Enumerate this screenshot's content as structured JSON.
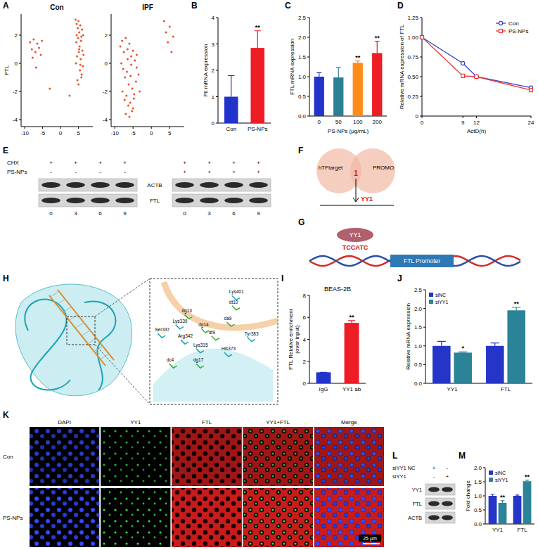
{
  "chart_data": [
    {
      "type": "scatter",
      "panel_label": "A",
      "title": "Con",
      "y_label": "FTL",
      "color": "#e8502a",
      "marker": "circle",
      "x": [
        4.2,
        4.5,
        4.8,
        5.0,
        5.2,
        5.5,
        5.8,
        6.0,
        6.3,
        4.4,
        4.9,
        5.3,
        5.7,
        6.1,
        4.6,
        5.1,
        5.6,
        6.2,
        4.3,
        5.4,
        5.9,
        4.7,
        5.0,
        5.8,
        6.4,
        4.5,
        5.2,
        5.5,
        -8.5,
        -8.0,
        -7.5,
        -7.0,
        -6.5,
        -6.0,
        -5.5,
        -5.2,
        -7.8,
        -6.8,
        -3.0,
        2.5
      ],
      "values": [
        3.1,
        2.8,
        2.5,
        3.0,
        2.2,
        2.7,
        1.9,
        2.4,
        2.0,
        1.5,
        1.8,
        1.2,
        1.6,
        0.9,
        0.5,
        0.8,
        0.3,
        -0.2,
        0.0,
        -0.5,
        -0.8,
        -1.2,
        -1.5,
        -1.0,
        0.6,
        2.0,
        1.0,
        -0.1,
        1.5,
        1.0,
        1.7,
        0.8,
        1.4,
        1.1,
        0.6,
        1.6,
        0.4,
        -0.3,
        -1.8,
        -2.3
      ],
      "xlim": [
        -11,
        9
      ],
      "xticks": [
        -10,
        -5,
        0,
        5
      ],
      "ylim": [
        -4.5,
        3.5
      ],
      "yticks": [
        -4,
        -2,
        0,
        2
      ]
    },
    {
      "type": "scatter",
      "title": "IPF",
      "color": "#e8502a",
      "marker": "circle",
      "x": [
        -8.5,
        -8.0,
        -7.5,
        -7.0,
        -6.5,
        -6.0,
        -5.5,
        -5.0,
        -4.5,
        -4.0,
        -3.5,
        -8.2,
        -7.7,
        -7.2,
        -6.7,
        -6.2,
        -5.7,
        -5.2,
        -4.7,
        -4.2,
        -7.9,
        -7.3,
        -6.8,
        -6.3,
        -5.8,
        -5.3,
        -4.8,
        -7.0,
        -6.0,
        -5.0,
        -6.5,
        -5.5,
        -4.0,
        -3.2,
        3.5,
        4.0,
        4.5,
        5.0,
        5.5,
        6.0
      ],
      "values": [
        1.2,
        1.6,
        0.8,
        1.8,
        1.0,
        1.4,
        0.5,
        0.9,
        0.2,
        -0.3,
        -0.8,
        0.0,
        -0.4,
        -1.0,
        -0.6,
        -1.5,
        -0.9,
        -1.8,
        -2.2,
        -1.3,
        -2.0,
        -2.6,
        -2.3,
        -3.0,
        -2.8,
        -3.4,
        -2.5,
        -3.6,
        -3.8,
        -3.2,
        0.3,
        -0.1,
        0.6,
        -2.0,
        3.0,
        2.2,
        1.5,
        2.6,
        0.8,
        1.9
      ],
      "xlim": [
        -11,
        9
      ],
      "xticks": [
        -10,
        -5,
        0,
        5
      ],
      "ylim": [
        -4.5,
        3.5
      ],
      "yticks": [
        -4,
        -2,
        0,
        2
      ]
    },
    {
      "type": "bar",
      "panel_label": "B",
      "y_label": "Ftl mRNA expression",
      "categories": [
        "Con",
        "PS-NPs"
      ],
      "values": [
        1.0,
        2.85
      ],
      "errors": [
        0.8,
        0.65
      ],
      "significance": [
        null,
        "**"
      ],
      "colors": [
        "#2233cc",
        "#ee1c25"
      ],
      "ylim": [
        0,
        4
      ],
      "yticks": [
        0,
        1,
        2,
        3,
        4
      ]
    },
    {
      "type": "bar",
      "panel_label": "C",
      "y_label": "FTL mRNA expression",
      "x_label": "PS-NPs (μg/mL)",
      "categories": [
        "0",
        "50",
        "100",
        "200"
      ],
      "values": [
        1.0,
        0.98,
        1.35,
        1.6
      ],
      "errors": [
        0.1,
        0.25,
        0.05,
        0.3
      ],
      "significance": [
        null,
        null,
        "**",
        "**"
      ],
      "colors": [
        "#2233cc",
        "#2a7f95",
        "#ff8c1a",
        "#ee1c25"
      ],
      "ylim": [
        0,
        2.5
      ],
      "yticks": [
        {
          "value": 0,
          "label": "0.0"
        },
        0.5,
        {
          "value": 1,
          "label": "1.0"
        },
        1.5,
        {
          "value": 2,
          "label": "2.0"
        },
        2.5
      ]
    },
    {
      "type": "line",
      "panel_label": "D",
      "y_label": "Relative mRNA expression of FTL",
      "x_label": "ActD(h)",
      "x": [
        0,
        9,
        12,
        24
      ],
      "series": [
        {
          "name": "Con",
          "color": "#3a3ad0",
          "marker": "circle",
          "values": [
            1.0,
            0.67,
            0.5,
            0.36
          ]
        },
        {
          "name": "PS-NPs",
          "color": "#ee3333",
          "marker": "square",
          "values": [
            1.0,
            0.51,
            0.5,
            0.33
          ]
        }
      ],
      "xlim": [
        0,
        24
      ],
      "xticks": [
        0,
        9,
        12,
        24
      ],
      "ylim": [
        0,
        1.25
      ],
      "yticks": [
        0,
        0.25,
        {
          "value": 0.5,
          "label": "0.50"
        },
        0.75,
        {
          "value": 1,
          "label": "1.00"
        },
        1.25
      ],
      "legend": "top-right"
    },
    {
      "type": "bar",
      "panel_label": "I",
      "title": "BEAS-2B",
      "y_label": "FTL Relative enrichment (over input)",
      "categories": [
        "IgG",
        "YY1 ab"
      ],
      "values": [
        1.0,
        5.5
      ],
      "errors": [
        0,
        0.2
      ],
      "significance": [
        null,
        "**"
      ],
      "colors": [
        "#2233cc",
        "#ee1c25"
      ],
      "ylim": [
        0,
        8
      ],
      "yticks": [
        0,
        2,
        4,
        6,
        8
      ]
    },
    {
      "type": "bar",
      "panel_label": "J",
      "y_label": "Relative mRNA expression",
      "categories": [
        "YY1",
        "FTL"
      ],
      "series": [
        {
          "name": "siNC",
          "color": "#2435c8",
          "values": [
            1.0,
            1.0
          ],
          "errors": [
            0.12,
            0.08
          ]
        },
        {
          "name": "siYY1",
          "color": "#2b8397",
          "values": [
            0.82,
            1.95
          ],
          "errors": [
            0.02,
            0.08
          ],
          "significance": [
            "*",
            "**"
          ]
        }
      ],
      "ylim": [
        0,
        2.5
      ],
      "yticks": [
        {
          "value": 0,
          "label": "0.0"
        },
        0.5,
        {
          "value": 1,
          "label": "1.0"
        },
        1.5,
        {
          "value": 2,
          "label": "2.0"
        },
        2.5
      ],
      "legend": "top-left"
    },
    {
      "type": "bar",
      "panel_label": "M",
      "y_label": "Fold change",
      "categories": [
        "YY1",
        "FTL"
      ],
      "series": [
        {
          "name": "siNC",
          "color": "#2435c8",
          "values": [
            1.0,
            1.0
          ],
          "errors": [
            0.05,
            0.03
          ]
        },
        {
          "name": "siYY1",
          "color": "#2b8397",
          "values": [
            0.75,
            1.52
          ],
          "errors": [
            0.08,
            0.04
          ],
          "significance": [
            "**",
            "**"
          ]
        }
      ],
      "ylim": [
        0,
        2
      ],
      "yticks": [
        {
          "value": 0,
          "label": "0.0"
        },
        0.5,
        {
          "value": 1,
          "label": "1.0"
        },
        1.5,
        {
          "value": 2,
          "label": "2.0"
        }
      ],
      "legend": "top-left"
    }
  ],
  "diagrams": {
    "E": {
      "panel_label": "E",
      "row_labels": [
        "CHX",
        "PS-NPs"
      ],
      "band_labels": [
        "ACTB",
        "FTL"
      ],
      "blots": [
        {
          "signs": [
            [
              "+",
              "+",
              "+",
              "+"
            ],
            [
              "-",
              "-",
              "-",
              "-"
            ]
          ],
          "times": [
            "0",
            "3",
            "6",
            "9"
          ]
        },
        {
          "signs": [
            [
              "+",
              "+",
              "+",
              "+"
            ],
            [
              "+",
              "+",
              "+",
              "+"
            ]
          ],
          "times": [
            "0",
            "3",
            "6",
            "9"
          ]
        }
      ]
    },
    "F": {
      "panel_label": "F",
      "sets": [
        "hTFtarget",
        "PROMO"
      ],
      "overlap": 1,
      "result": "YY1"
    },
    "G": {
      "panel_label": "G",
      "factor": "YY1",
      "motif": "TCCATC",
      "region": "FTL Promoter"
    },
    "H": {
      "panel_label": "H",
      "residues": [
        "Lys401",
        "dt10",
        "dg13",
        "Ser337",
        "Lys339",
        "Arg342",
        "dg14",
        "dt9",
        "da9",
        "Tyr383",
        "Lys315",
        "His373",
        "dc4",
        "dg17"
      ]
    },
    "K": {
      "panel_label": "K",
      "columns": [
        "DAPI",
        "YY1",
        "FTL",
        "YY1+FTL",
        "Merge"
      ],
      "rows": [
        "Con",
        "PS-NPs"
      ],
      "scale_bar": "25 μm"
    },
    "L": {
      "panel_label": "L",
      "row_labels": [
        "siYY1 NC",
        "siYY1"
      ],
      "signs": [
        [
          "+",
          "-"
        ],
        [
          "-",
          "+"
        ]
      ],
      "band_labels": [
        "YY1",
        "FTL",
        "ACTB"
      ]
    }
  }
}
